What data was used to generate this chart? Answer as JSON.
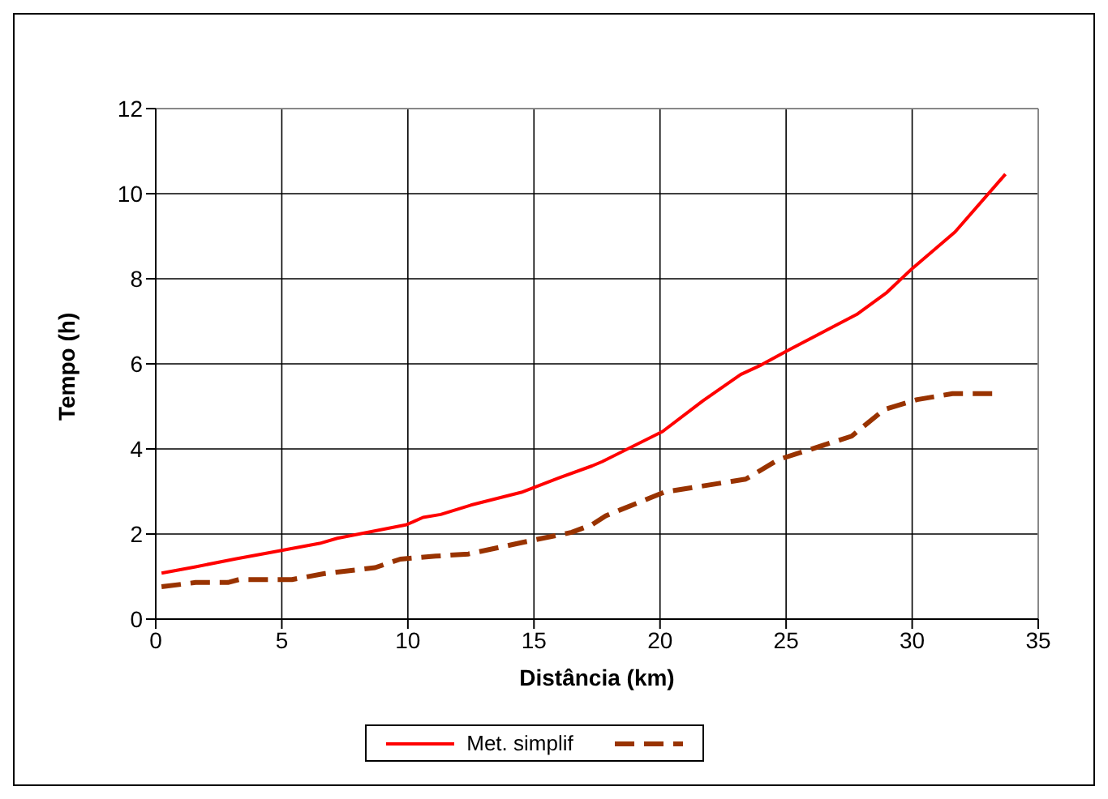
{
  "chart_data": {
    "type": "line",
    "xlabel": "Distância (km)",
    "ylabel": "Tempo (h)",
    "xlim": [
      0,
      35
    ],
    "xticks": [
      0,
      5,
      10,
      15,
      20,
      25,
      30,
      35
    ],
    "ylim": [
      0,
      12
    ],
    "yticks": [
      0,
      2,
      4,
      6,
      8,
      10,
      12
    ],
    "grid": true,
    "legend": "bottom",
    "marker": "none",
    "series": [
      {
        "name": "Met. simplif",
        "color": "#ff0000",
        "line_style": "solid",
        "x": [
          0.23,
          1.58,
          3.2,
          4.6,
          6.5,
          7.2,
          9.95,
          10.6,
          11.3,
          12.5,
          14.5,
          16,
          17.3,
          17.7,
          20.1,
          21.7,
          23.2,
          24,
          25.05,
          27.8,
          29,
          30,
          31.7,
          33.7
        ],
        "values": [
          1.08,
          1.23,
          1.42,
          1.57,
          1.78,
          1.9,
          2.22,
          2.39,
          2.46,
          2.68,
          2.98,
          3.32,
          3.6,
          3.7,
          4.41,
          5.13,
          5.75,
          5.97,
          6.31,
          7.16,
          7.68,
          8.24,
          9.1,
          10.46
        ]
      },
      {
        "color": "#993300",
        "line_style": "dashed",
        "x": [
          0.23,
          1.58,
          2.86,
          3.3,
          5.4,
          6.7,
          8.7,
          9.7,
          11.1,
          12.4,
          14.6,
          16.5,
          17.3,
          17.85,
          20.2,
          23.4,
          24.7,
          27.6,
          28.9,
          30.2,
          31.6,
          33.4
        ],
        "values": [
          0.76,
          0.86,
          0.86,
          0.93,
          0.93,
          1.07,
          1.21,
          1.41,
          1.48,
          1.53,
          1.81,
          2.04,
          2.22,
          2.43,
          2.99,
          3.29,
          3.75,
          4.3,
          4.93,
          5.16,
          5.3,
          5.3
        ]
      }
    ]
  }
}
